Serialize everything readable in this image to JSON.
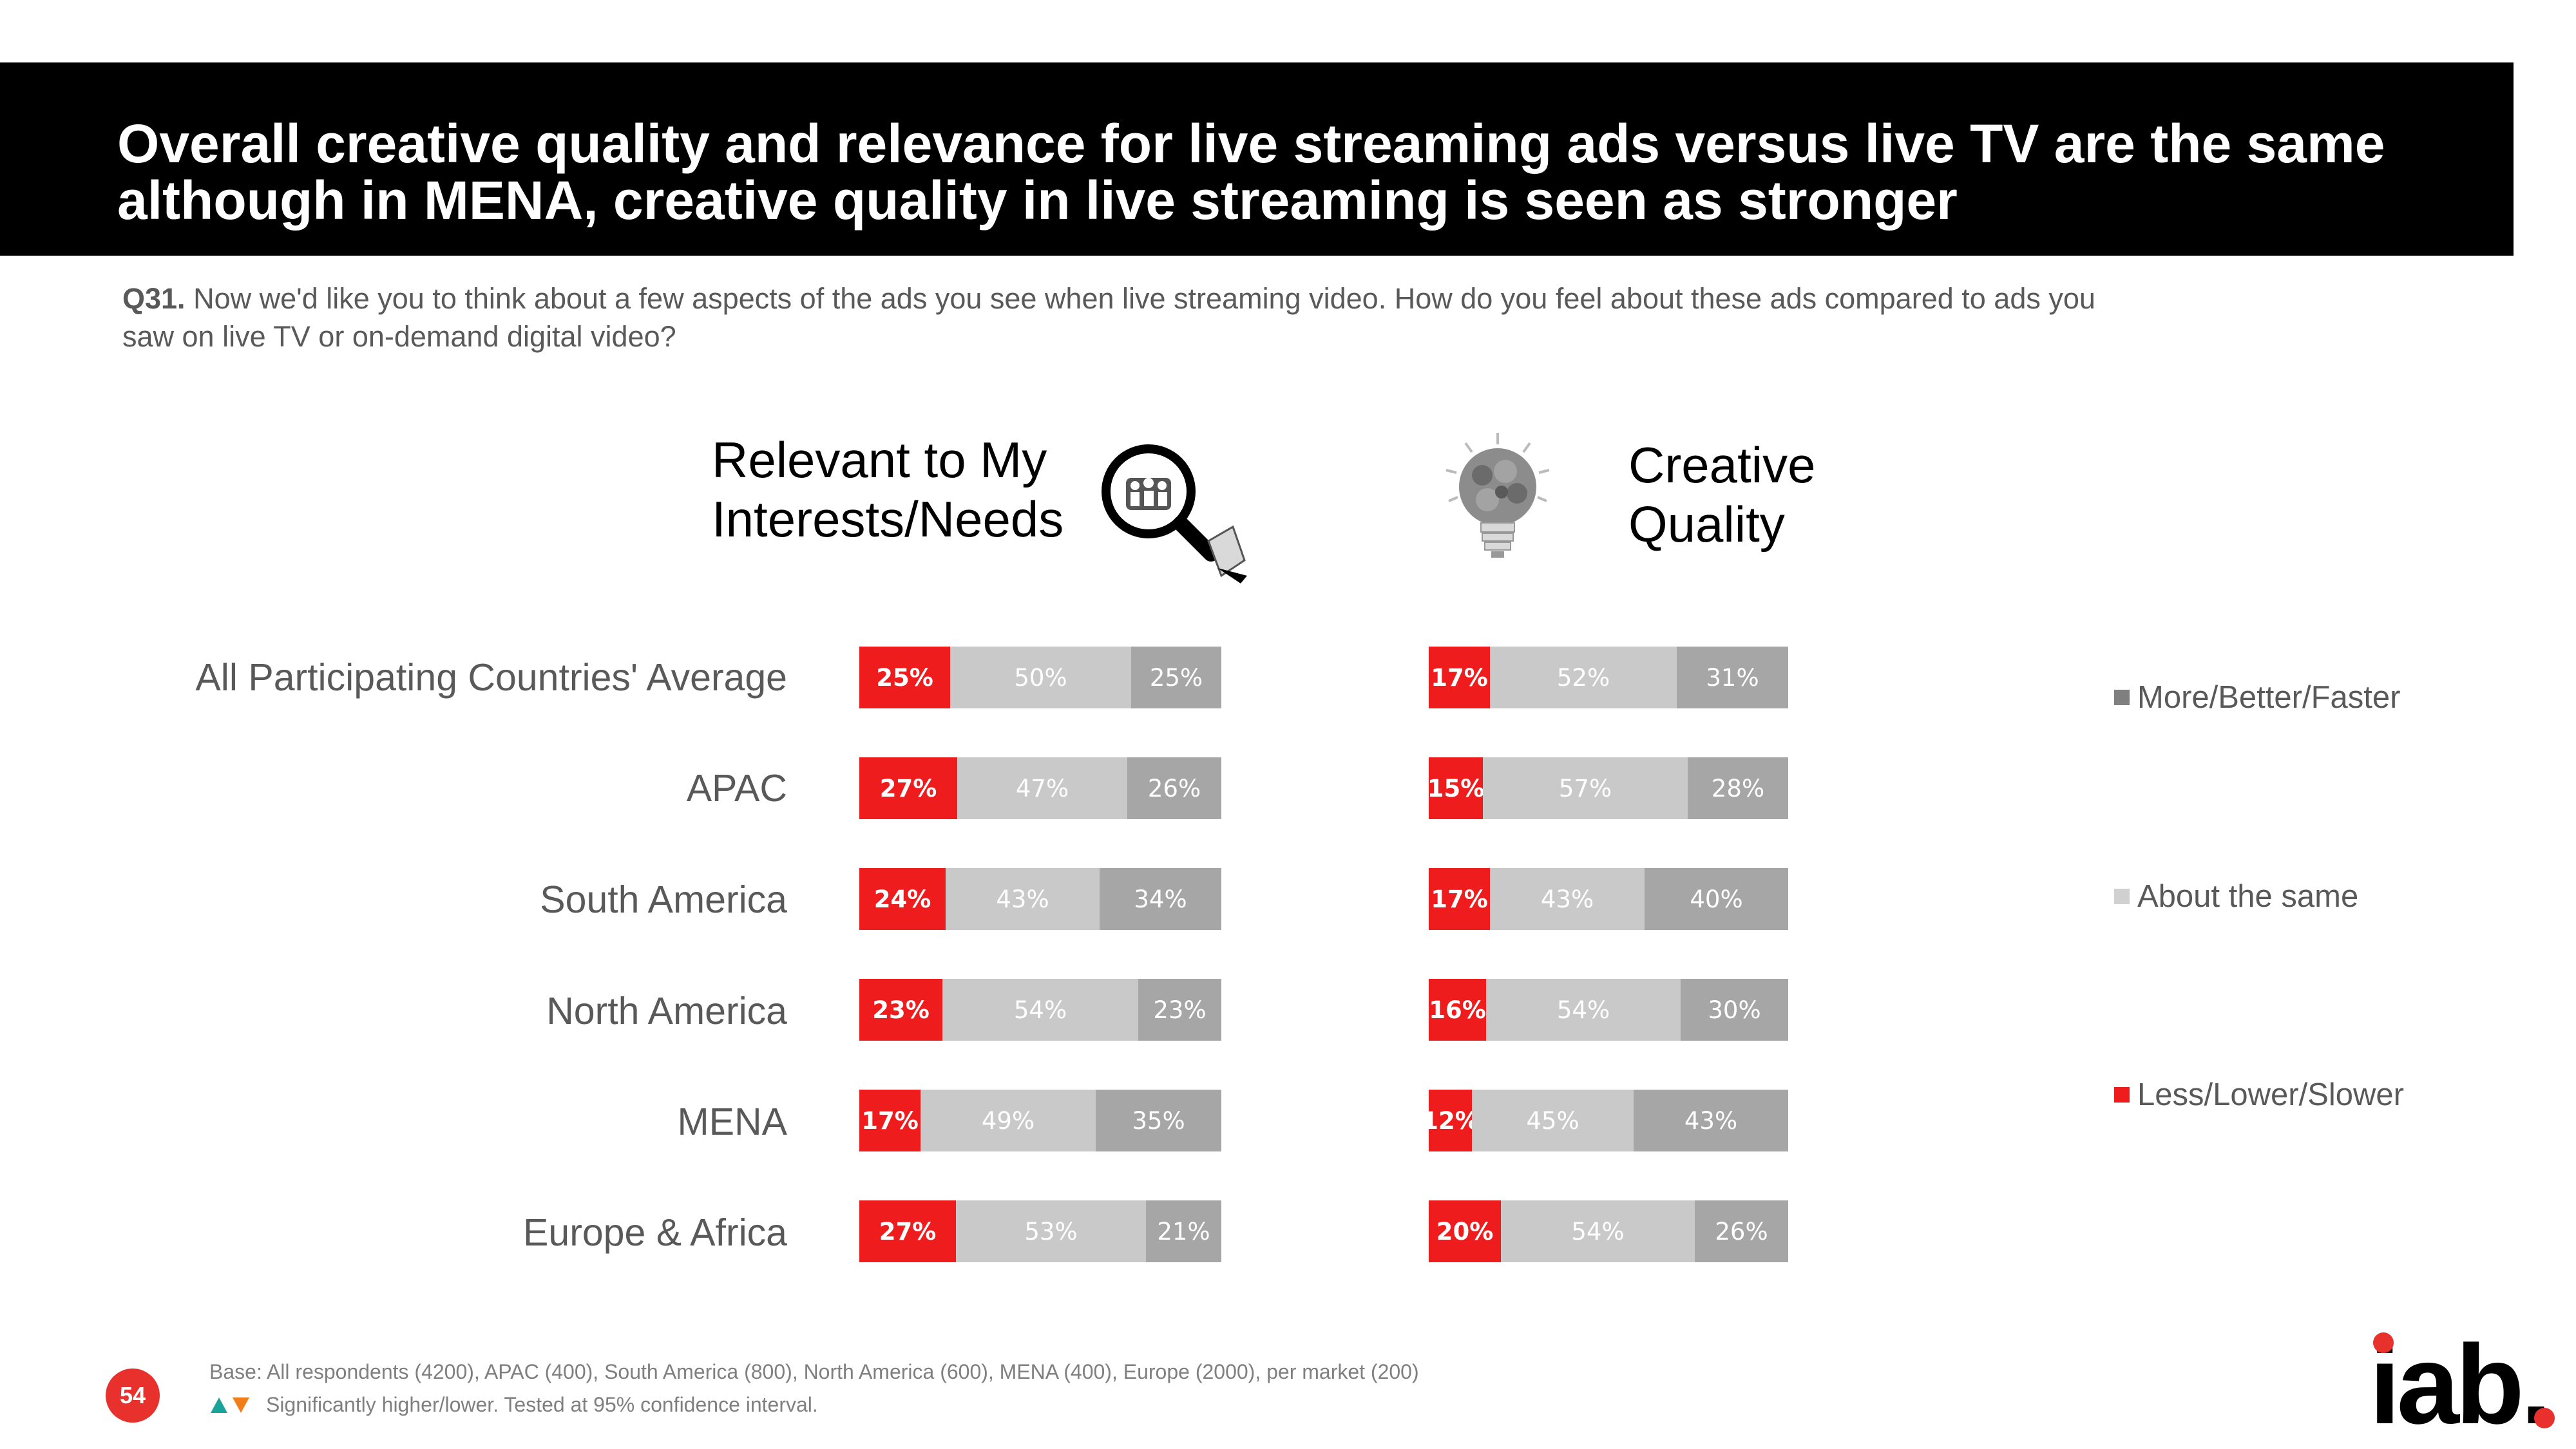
{
  "title": "Overall creative quality and relevance for live streaming ads versus live TV are the same although in MENA, creative quality in live streaming is seen as stronger",
  "question": {
    "label": "Q31.",
    "text": "Now we'd like you to think about a few aspects of the ads you see when live streaming video. How do you feel about these ads compared to ads you saw on live TV or on-demand digital video?"
  },
  "panels": {
    "left_title_line1": "Relevant to My",
    "left_title_line2": "Interests/Needs",
    "right_title_line1": "Creative",
    "right_title_line2": "Quality"
  },
  "legend": [
    {
      "label": "More/Better/Faster",
      "color": "#a6a6a6"
    },
    {
      "label": "About the same",
      "color": "#d0d0d0"
    },
    {
      "label": "Less/Lower/Slower",
      "color": "#ee1c1c"
    }
  ],
  "colors": {
    "less": "#ee1c1c",
    "same": "#c9c9c9",
    "more": "#a6a6a6",
    "page_badge": "#e8302d"
  },
  "chart_data": [
    {
      "type": "bar",
      "stacked": true,
      "orientation": "horizontal",
      "title": "Relevant to My Interests/Needs",
      "categories": [
        "All Participating Countries' Average",
        "APAC",
        "South America",
        "North America",
        "MENA",
        "Europe & Africa"
      ],
      "series": [
        {
          "name": "Less/Lower/Slower",
          "values": [
            25,
            27,
            24,
            23,
            17,
            27
          ],
          "labels": [
            "25%",
            "27%",
            "24%",
            "23%",
            "17%",
            "27%"
          ]
        },
        {
          "name": "About the same",
          "values": [
            50,
            47,
            43,
            54,
            49,
            53
          ],
          "labels": [
            "50%",
            "47%",
            "43%",
            "54%",
            "49%",
            "53%"
          ]
        },
        {
          "name": "More/Better/Faster",
          "values": [
            25,
            26,
            34,
            23,
            35,
            21
          ],
          "labels": [
            "25%",
            "26%",
            "34%",
            "23%",
            "35%",
            "21%"
          ]
        }
      ],
      "xlim": [
        0,
        100
      ]
    },
    {
      "type": "bar",
      "stacked": true,
      "orientation": "horizontal",
      "title": "Creative Quality",
      "categories": [
        "All Participating Countries' Average",
        "APAC",
        "South America",
        "North America",
        "MENA",
        "Europe & Africa"
      ],
      "series": [
        {
          "name": "Less/Lower/Slower",
          "values": [
            17,
            15,
            17,
            16,
            12,
            20
          ],
          "labels": [
            "17%",
            "15%",
            "17%",
            "16%",
            "12%",
            "20%"
          ]
        },
        {
          "name": "About the same",
          "values": [
            52,
            57,
            43,
            54,
            45,
            54
          ],
          "labels": [
            "52%",
            "57%",
            "43%",
            "54%",
            "45%",
            "54%"
          ]
        },
        {
          "name": "More/Better/Faster",
          "values": [
            31,
            28,
            40,
            30,
            43,
            26
          ],
          "labels": [
            "31%",
            "28%",
            "40%",
            "30%",
            "43%",
            "26%"
          ]
        }
      ],
      "xlim": [
        0,
        100
      ]
    }
  ],
  "footer": {
    "base": "Base: All respondents (4200), APAC (400), South America (800), North America (600), MENA (400), Europe (2000), per market (200)",
    "significance": "Significantly higher/lower. Tested at 95% confidence interval.",
    "page_number": "54"
  },
  "logo": {
    "text": "iab."
  }
}
